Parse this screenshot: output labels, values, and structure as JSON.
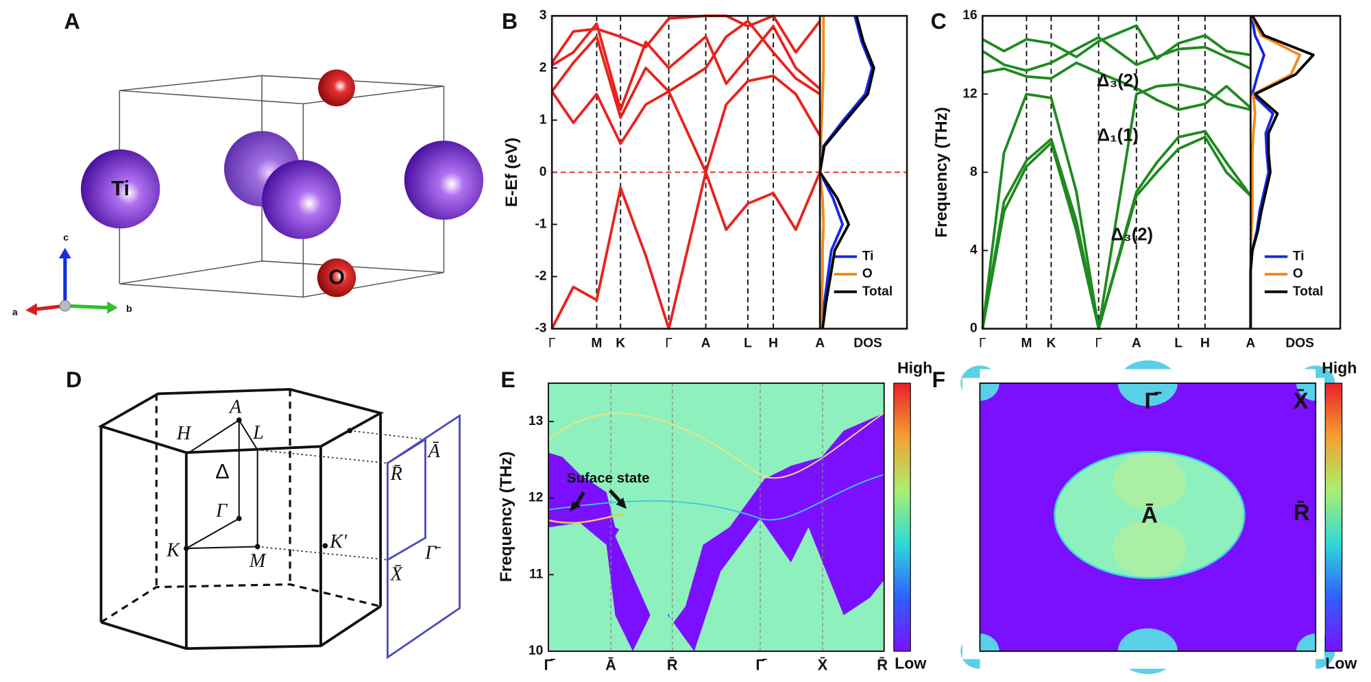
{
  "panels": {
    "A": {
      "letter": "A",
      "atoms": [
        "Ti",
        "O"
      ],
      "axes": [
        "a",
        "b",
        "c"
      ]
    },
    "D": {
      "letter": "D",
      "points": [
        "A",
        "H",
        "L",
        "Δ",
        "Γ",
        "K",
        "M",
        "K'",
        "R̄",
        "Ā",
        "Γ̄",
        "X̄"
      ]
    },
    "E": {
      "letter": "E",
      "ylabel": "Frequency (THz)",
      "ylim": [
        10,
        13.5
      ],
      "yticks": [
        10,
        11,
        12,
        13
      ],
      "xlabels": [
        "Γ̄",
        "Ā",
        "R̄",
        "Γ̄",
        "X̄",
        "R̄"
      ],
      "annotation": "Suface state",
      "colorbar": [
        "High",
        "Low"
      ]
    },
    "F": {
      "letter": "F",
      "points": [
        "Γ̄",
        "X̄",
        "Ā",
        "R̄"
      ],
      "colorbar": [
        "High",
        "Low"
      ]
    }
  },
  "chart_data": [
    {
      "type": "line",
      "panel": "B",
      "ylabel": "E-Ef (eV)",
      "x": [
        0,
        0.08,
        0.167,
        0.256,
        0.35,
        0.436,
        0.574,
        0.65,
        0.731,
        0.826,
        0.91,
        1.0
      ],
      "xlim": [
        0,
        1
      ],
      "xticks": [
        {
          "value": 0,
          "label": "Γ"
        },
        {
          "value": 0.167,
          "label": "M"
        },
        {
          "value": 0.256,
          "label": "K"
        },
        {
          "value": 0.436,
          "label": "Γ"
        },
        {
          "value": 0.574,
          "label": "A"
        },
        {
          "value": 0.731,
          "label": "L"
        },
        {
          "value": 0.826,
          "label": "H"
        },
        {
          "value": 1.0,
          "label": "A"
        }
      ],
      "ylim": [
        -3,
        3
      ],
      "yticks": [
        -3,
        -2,
        -1,
        0,
        1,
        2,
        3
      ],
      "reference_line": 0,
      "reference_color": "#e8231c",
      "series": [
        {
          "color": "#e8231c",
          "values": [
            -3,
            -2.2,
            -2.45,
            -0.3,
            -1.6,
            -3,
            0,
            -1.1,
            -0.6,
            -0.4,
            -1.1,
            0
          ]
        },
        {
          "color": "#e8231c",
          "values": [
            1.55,
            0.95,
            1.5,
            0.55,
            1.3,
            1.55,
            0,
            1.3,
            1.75,
            1.85,
            1.5,
            0.7
          ]
        },
        {
          "color": "#e8231c",
          "values": [
            1.55,
            2.1,
            2.6,
            1.05,
            2.0,
            1.55,
            2.0,
            2.6,
            2.9,
            2.3,
            1.8,
            1.5
          ]
        },
        {
          "color": "#e8231c",
          "values": [
            2.05,
            2.3,
            2.85,
            1.2,
            2.5,
            2.0,
            2.6,
            1.7,
            2.2,
            2.8,
            2.0,
            1.6
          ]
        },
        {
          "color": "#e8231c",
          "values": [
            2.1,
            2.7,
            2.75,
            2.6,
            2.4,
            2.95,
            3.0,
            3.0,
            2.8,
            3.0,
            2.3,
            2.9
          ]
        }
      ],
      "dos": {
        "xlabel": "DOS",
        "xlim": [
          0,
          1
        ],
        "y": [
          -3,
          -2.5,
          -2,
          -1.5,
          -1,
          -0.5,
          0,
          0.5,
          1,
          1.5,
          2,
          2.5,
          3
        ],
        "series": [
          {
            "name": "Ti",
            "color": "#1428e6",
            "values": [
              0.02,
              0.05,
              0.09,
              0.13,
              0.26,
              0.15,
              0,
              0.04,
              0.27,
              0.52,
              0.6,
              0.48,
              0.4
            ]
          },
          {
            "name": "O",
            "color": "#f28a1e",
            "values": [
              0.01,
              0.02,
              0.03,
              0.03,
              0.04,
              0.03,
              0,
              0.01,
              0.02,
              0.03,
              0.04,
              0.04,
              0.04
            ]
          },
          {
            "name": "Total",
            "color": "#000000",
            "values": [
              0.03,
              0.07,
              0.12,
              0.17,
              0.33,
              0.2,
              0,
              0.05,
              0.3,
              0.55,
              0.62,
              0.5,
              0.42
            ]
          }
        ]
      }
    },
    {
      "type": "line",
      "panel": "C",
      "ylabel": "Frequency (THz)",
      "x": [
        0,
        0.08,
        0.164,
        0.256,
        0.35,
        0.433,
        0.574,
        0.65,
        0.731,
        0.83,
        0.91,
        1.0
      ],
      "xlim": [
        0,
        1
      ],
      "xticks": [
        {
          "value": 0,
          "label": "Γ"
        },
        {
          "value": 0.164,
          "label": "M"
        },
        {
          "value": 0.256,
          "label": "K"
        },
        {
          "value": 0.433,
          "label": "Γ"
        },
        {
          "value": 0.574,
          "label": "A"
        },
        {
          "value": 0.731,
          "label": "L"
        },
        {
          "value": 0.83,
          "label": "H"
        },
        {
          "value": 1.0,
          "label": "A"
        }
      ],
      "ylim": [
        0,
        16
      ],
      "yticks": [
        0,
        4,
        8,
        12,
        16
      ],
      "annotations": [
        "Δ₃(2)",
        "Δ₁(1)",
        "Δ₃(2)"
      ],
      "series": [
        {
          "color": "#1f8a1f",
          "values": [
            0,
            6,
            8.3,
            9.5,
            5,
            0,
            6.8,
            8,
            9.2,
            9.8,
            8,
            6.8
          ]
        },
        {
          "color": "#1f8a1f",
          "values": [
            0,
            6.5,
            8.6,
            9.7,
            5.5,
            0,
            7,
            8.5,
            9.8,
            10.1,
            8.5,
            6.8
          ]
        },
        {
          "color": "#1f8a1f",
          "values": [
            0,
            9,
            12,
            11.8,
            7,
            0,
            12.0,
            12.4,
            12.5,
            12.2,
            11.5,
            11.2
          ]
        },
        {
          "color": "#1f8a1f",
          "values": [
            13.1,
            13.3,
            12.9,
            12.8,
            13.6,
            13.1,
            12.3,
            11.7,
            11.2,
            11.5,
            12.4,
            11.3
          ]
        },
        {
          "color": "#1f8a1f",
          "values": [
            14.2,
            13.5,
            13.2,
            13.6,
            14.3,
            14.9,
            13.5,
            13.9,
            14.3,
            14.4,
            13.9,
            13.3
          ]
        },
        {
          "color": "#1f8a1f",
          "values": [
            14.8,
            14.2,
            14.8,
            14.6,
            13.9,
            14.7,
            15.5,
            13.8,
            14.6,
            15.0,
            14.2,
            14.0
          ]
        }
      ],
      "dos": {
        "xlabel": "DOS",
        "xlim": [
          0,
          1
        ],
        "y": [
          0,
          1,
          2,
          3,
          4,
          5,
          6,
          7,
          8,
          9,
          10,
          11,
          12,
          13,
          14,
          15,
          16
        ],
        "series": [
          {
            "name": "Ti",
            "color": "#1428e6",
            "values": [
              0,
              0,
              0,
              0,
              0.02,
              0.07,
              0.1,
              0.15,
              0.2,
              0.18,
              0.17,
              0.25,
              0.02,
              0.08,
              0.15,
              0.05,
              0.01
            ]
          },
          {
            "name": "O",
            "color": "#f28a1e",
            "values": [
              0,
              0,
              0,
              0,
              0,
              0.01,
              0.02,
              0.02,
              0.02,
              0.02,
              0.03,
              0.05,
              0.03,
              0.45,
              0.55,
              0.12,
              0.01
            ]
          },
          {
            "name": "Total",
            "color": "#000000",
            "values": [
              0,
              0,
              0,
              0,
              0.02,
              0.08,
              0.12,
              0.17,
              0.22,
              0.2,
              0.2,
              0.3,
              0.05,
              0.5,
              0.7,
              0.15,
              0.02
            ]
          }
        ]
      }
    }
  ]
}
